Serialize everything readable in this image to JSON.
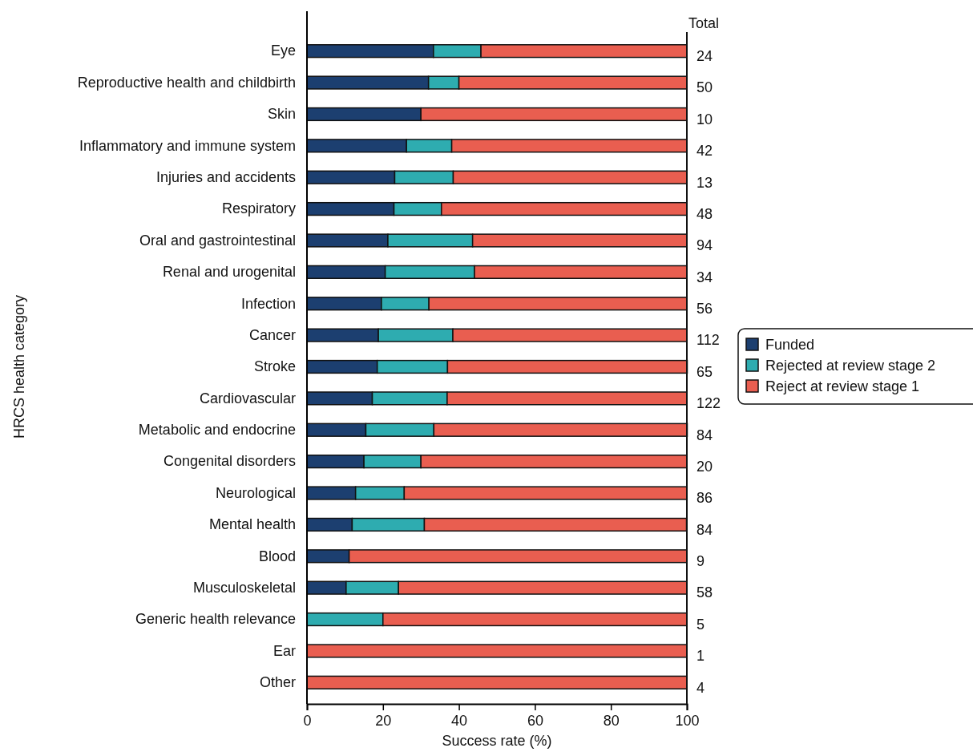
{
  "chart_data": {
    "type": "bar",
    "orientation": "horizontal",
    "stacked": true,
    "categories": [
      "Eye",
      "Reproductive health and childbirth",
      "Skin",
      "Inflammatory and immune system",
      "Injuries and accidents",
      "Respiratory",
      "Oral and gastrointestinal",
      "Renal and urogenital",
      "Infection",
      "Cancer",
      "Stroke",
      "Cardiovascular",
      "Metabolic and endocrine",
      "Congenital disorders",
      "Neurological",
      "Mental health",
      "Blood",
      "Musculoskeletal",
      "Generic health relevance",
      "Ear",
      "Other"
    ],
    "series": [
      {
        "name": "Funded",
        "color": "#1c3f70",
        "values": [
          33.3,
          32,
          30,
          26.2,
          23.1,
          22.9,
          21.3,
          20.6,
          19.6,
          18.8,
          18.5,
          17.2,
          15.5,
          15,
          12.8,
          11.9,
          11.1,
          10.3,
          0,
          0,
          0
        ]
      },
      {
        "name": "Rejected at review stage 2",
        "color": "#2eacb0",
        "values": [
          12.5,
          8,
          0,
          11.9,
          15.4,
          12.5,
          22.3,
          23.5,
          12.5,
          19.6,
          18.5,
          19.7,
          17.9,
          15,
          12.8,
          19.0,
          0,
          13.8,
          20,
          0,
          0
        ]
      },
      {
        "name": "Reject at review stage 1",
        "color": "#e95e50",
        "values": [
          54.2,
          60,
          70,
          61.9,
          61.5,
          64.6,
          56.4,
          55.9,
          67.9,
          61.6,
          63.1,
          63.1,
          66.7,
          70,
          74.4,
          69.0,
          88.9,
          75.9,
          80,
          100,
          100
        ]
      }
    ],
    "annotations": [
      "Total",
      "24",
      "50",
      "10",
      "42",
      "13",
      "48",
      "94",
      "34",
      "56",
      "112",
      "65",
      "122",
      "84",
      "20",
      "86",
      "84",
      "9",
      "58",
      "5",
      "1",
      "4"
    ],
    "xlabel": "Success rate (%)",
    "ylabel": "HRCS health category",
    "xlim": [
      0,
      100
    ],
    "xticks": [
      0,
      20,
      40,
      60,
      80,
      100
    ],
    "legend": "right",
    "grid": false
  }
}
